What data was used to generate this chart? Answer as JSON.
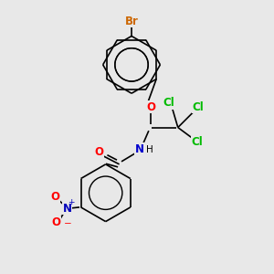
{
  "bg_color": "#e8e8e8",
  "bond_color": "#000000",
  "br_color": "#cc6600",
  "cl_color": "#00bb00",
  "o_color": "#ff0000",
  "n_color": "#0000cc",
  "no2_n_color": "#0000bb",
  "no2_o_color": "#ff0000",
  "font_size_atom": 8.5,
  "line_width": 1.2,
  "figsize": [
    3.0,
    3.0
  ],
  "dpi": 100,
  "xlim": [
    0,
    10
  ],
  "ylim": [
    0,
    10
  ]
}
